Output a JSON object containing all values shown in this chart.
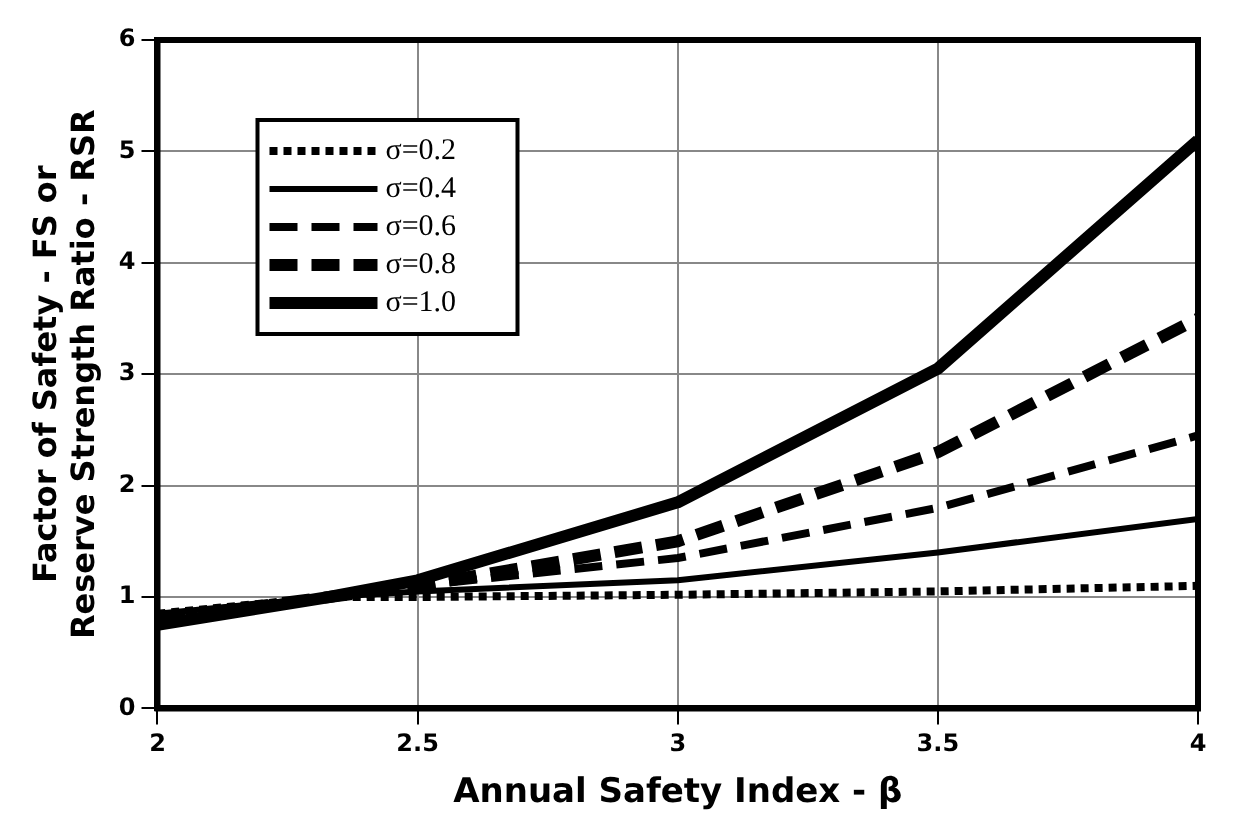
{
  "chart_data": {
    "type": "line",
    "xlabel": "Annual Safety Index - β",
    "ylabel": "Factor of Safety - FS or\nReserve Strength Ratio - RSR",
    "xlim": [
      2,
      4
    ],
    "xticks": [
      2,
      2.5,
      3,
      3.5,
      4
    ],
    "ylim": [
      0,
      6
    ],
    "yticks": [
      0,
      1,
      2,
      3,
      4,
      5,
      6
    ],
    "grid": true,
    "legend": "top left",
    "marker": "none",
    "x": [
      2,
      2.33,
      2.5,
      3,
      3.5,
      4
    ],
    "series": [
      {
        "name": "σ=0.2",
        "color": "#000000",
        "line_style": "dotted",
        "values": [
          0.85,
          1.0,
          1.0,
          1.02,
          1.05,
          1.1
        ]
      },
      {
        "name": "σ=0.4",
        "color": "#000000",
        "line_style": "solid",
        "values": [
          0.85,
          1.0,
          1.05,
          1.15,
          1.4,
          1.7
        ]
      },
      {
        "name": "σ=0.6",
        "color": "#000000",
        "line_style": "dashed",
        "values": [
          0.8,
          1.0,
          1.1,
          1.35,
          1.8,
          2.45
        ]
      },
      {
        "name": "σ=0.8",
        "color": "#000000",
        "line_style": "dashed",
        "values": [
          0.8,
          1.0,
          1.1,
          1.5,
          2.3,
          3.5
        ]
      },
      {
        "name": "σ=1.0",
        "color": "#000000",
        "line_style": "solid",
        "values": [
          0.75,
          1.0,
          1.15,
          1.85,
          3.05,
          5.1
        ]
      }
    ]
  }
}
